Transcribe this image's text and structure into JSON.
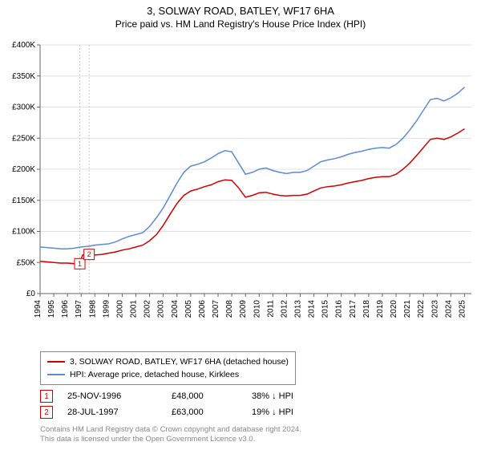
{
  "title": "3, SOLWAY ROAD, BATLEY, WF17 6HA",
  "subtitle": "Price paid vs. HM Land Registry's House Price Index (HPI)",
  "chart": {
    "type": "line",
    "background_color": "#ffffff",
    "grid_color": "#e0e0e0",
    "axis_color": "#666666",
    "x_years": [
      1994,
      1995,
      1996,
      1997,
      1998,
      1999,
      2000,
      2001,
      2002,
      2003,
      2004,
      2005,
      2006,
      2007,
      2008,
      2009,
      2010,
      2011,
      2012,
      2013,
      2014,
      2015,
      2016,
      2017,
      2018,
      2019,
      2020,
      2021,
      2022,
      2023,
      2024,
      2025
    ],
    "xlim": [
      1994,
      2025.5
    ],
    "ylim": [
      0,
      400000
    ],
    "ytick_step": 50000,
    "ytick_labels": [
      "£0",
      "£50K",
      "£100K",
      "£150K",
      "£200K",
      "£250K",
      "£300K",
      "£350K",
      "£400K"
    ],
    "tick_fontsize": 10,
    "series": [
      {
        "name": "3, SOLWAY ROAD, BATLEY, WF17 6HA (detached house)",
        "color": "#d00000",
        "line_width": 1.5,
        "data": [
          [
            1994,
            52000
          ],
          [
            1995,
            50000
          ],
          [
            1995.5,
            49000
          ],
          [
            1996,
            49000
          ],
          [
            1996.5,
            48000
          ],
          [
            1996.9,
            48000
          ],
          [
            1997.1,
            62000
          ],
          [
            1997.58,
            63000
          ],
          [
            1998,
            62000
          ],
          [
            1998.5,
            63000
          ],
          [
            1999,
            65000
          ],
          [
            1999.5,
            67000
          ],
          [
            2000,
            70000
          ],
          [
            2000.5,
            72000
          ],
          [
            2001,
            75000
          ],
          [
            2001.5,
            78000
          ],
          [
            2002,
            85000
          ],
          [
            2002.5,
            95000
          ],
          [
            2003,
            110000
          ],
          [
            2003.5,
            128000
          ],
          [
            2004,
            145000
          ],
          [
            2004.5,
            158000
          ],
          [
            2005,
            165000
          ],
          [
            2005.5,
            168000
          ],
          [
            2006,
            172000
          ],
          [
            2006.5,
            175000
          ],
          [
            2007,
            180000
          ],
          [
            2007.5,
            183000
          ],
          [
            2008,
            182000
          ],
          [
            2008.5,
            170000
          ],
          [
            2009,
            155000
          ],
          [
            2009.5,
            158000
          ],
          [
            2010,
            162000
          ],
          [
            2010.5,
            163000
          ],
          [
            2011,
            160000
          ],
          [
            2011.5,
            158000
          ],
          [
            2012,
            157000
          ],
          [
            2012.5,
            158000
          ],
          [
            2013,
            158000
          ],
          [
            2013.5,
            160000
          ],
          [
            2014,
            165000
          ],
          [
            2014.5,
            170000
          ],
          [
            2015,
            172000
          ],
          [
            2015.5,
            173000
          ],
          [
            2016,
            175000
          ],
          [
            2016.5,
            178000
          ],
          [
            2017,
            180000
          ],
          [
            2017.5,
            182000
          ],
          [
            2018,
            185000
          ],
          [
            2018.5,
            187000
          ],
          [
            2019,
            188000
          ],
          [
            2019.5,
            188000
          ],
          [
            2020,
            192000
          ],
          [
            2020.5,
            200000
          ],
          [
            2021,
            210000
          ],
          [
            2021.5,
            222000
          ],
          [
            2022,
            235000
          ],
          [
            2022.5,
            248000
          ],
          [
            2023,
            250000
          ],
          [
            2023.5,
            248000
          ],
          [
            2024,
            252000
          ],
          [
            2024.5,
            258000
          ],
          [
            2025,
            265000
          ]
        ]
      },
      {
        "name": "HPI: Average price, detached house, Kirklees",
        "color": "#5b8bd4",
        "line_width": 1.5,
        "data": [
          [
            1994,
            75000
          ],
          [
            1995,
            73000
          ],
          [
            1995.5,
            72000
          ],
          [
            1996,
            72000
          ],
          [
            1996.5,
            73000
          ],
          [
            1997,
            75000
          ],
          [
            1997.5,
            76000
          ],
          [
            1998,
            78000
          ],
          [
            1998.5,
            79000
          ],
          [
            1999,
            80000
          ],
          [
            1999.5,
            83000
          ],
          [
            2000,
            88000
          ],
          [
            2000.5,
            92000
          ],
          [
            2001,
            95000
          ],
          [
            2001.5,
            98000
          ],
          [
            2002,
            108000
          ],
          [
            2002.5,
            122000
          ],
          [
            2003,
            138000
          ],
          [
            2003.5,
            158000
          ],
          [
            2004,
            178000
          ],
          [
            2004.5,
            195000
          ],
          [
            2005,
            205000
          ],
          [
            2005.5,
            208000
          ],
          [
            2006,
            212000
          ],
          [
            2006.5,
            218000
          ],
          [
            2007,
            225000
          ],
          [
            2007.5,
            230000
          ],
          [
            2008,
            228000
          ],
          [
            2008.5,
            210000
          ],
          [
            2009,
            192000
          ],
          [
            2009.5,
            195000
          ],
          [
            2010,
            200000
          ],
          [
            2010.5,
            202000
          ],
          [
            2011,
            198000
          ],
          [
            2011.5,
            195000
          ],
          [
            2012,
            193000
          ],
          [
            2012.5,
            195000
          ],
          [
            2013,
            195000
          ],
          [
            2013.5,
            198000
          ],
          [
            2014,
            205000
          ],
          [
            2014.5,
            212000
          ],
          [
            2015,
            215000
          ],
          [
            2015.5,
            217000
          ],
          [
            2016,
            220000
          ],
          [
            2016.5,
            224000
          ],
          [
            2017,
            227000
          ],
          [
            2017.5,
            229000
          ],
          [
            2018,
            232000
          ],
          [
            2018.5,
            234000
          ],
          [
            2019,
            235000
          ],
          [
            2019.5,
            234000
          ],
          [
            2020,
            240000
          ],
          [
            2020.5,
            250000
          ],
          [
            2021,
            263000
          ],
          [
            2021.5,
            278000
          ],
          [
            2022,
            295000
          ],
          [
            2022.5,
            312000
          ],
          [
            2023,
            314000
          ],
          [
            2023.5,
            310000
          ],
          [
            2024,
            315000
          ],
          [
            2024.5,
            322000
          ],
          [
            2025,
            332000
          ]
        ]
      }
    ],
    "sale_markers": [
      {
        "num": "1",
        "x": 1996.9,
        "y": 48000,
        "guide_color": "#f5b5b5"
      },
      {
        "num": "2",
        "x": 1997.58,
        "y": 63000,
        "guide_color": "#f5b5b5"
      }
    ],
    "marker_box_size": 13
  },
  "legend": {
    "items": [
      {
        "color": "#d00000",
        "label": "3, SOLWAY ROAD, BATLEY, WF17 6HA (detached house)"
      },
      {
        "color": "#5b8bd4",
        "label": "HPI: Average price, detached house, Kirklees"
      }
    ]
  },
  "sales": [
    {
      "num": "1",
      "date": "25-NOV-1996",
      "price": "£48,000",
      "diff": "38% ↓ HPI"
    },
    {
      "num": "2",
      "date": "28-JUL-1997",
      "price": "£63,000",
      "diff": "19% ↓ HPI"
    }
  ],
  "footnote_line1": "Contains HM Land Registry data © Crown copyright and database right 2024.",
  "footnote_line2": "This data is licensed under the Open Government Licence v3.0."
}
